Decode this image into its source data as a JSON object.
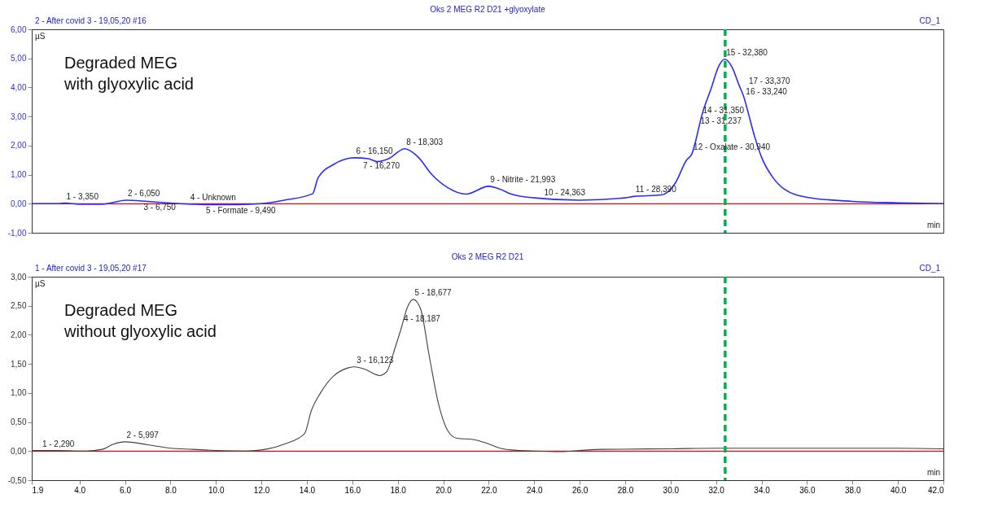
{
  "chart_data": [
    {
      "type": "line",
      "title": "Oks 2 MEG R2 D21 +glyoxylate",
      "annotations": [
        "2 - After covid 3 - 19,05,20 #16",
        "CD_1",
        "Degraded MEG\nwith glyoxylic acid",
        {
          "text": "1 - 3,350",
          "x": 3.35,
          "y": 0.02
        },
        {
          "text": "2 - 6,050",
          "x": 6.05,
          "y": 0.12
        },
        {
          "text": "3 - 6,750",
          "x": 6.75,
          "y": 0.1
        },
        {
          "text": "4 - Unknown",
          "x": 8.8,
          "y": -0.02
        },
        {
          "text": "5 - Formate - 9,490",
          "x": 9.49,
          "y": -0.03
        },
        {
          "text": "6 - 16,150",
          "x": 16.1,
          "y": 1.57
        },
        {
          "text": "7 - 16,270",
          "x": 16.4,
          "y": 1.52
        },
        {
          "text": "8 - 18,303",
          "x": 18.303,
          "y": 1.89
        },
        {
          "text": "9 - Nitrite - 21,993",
          "x": 21.993,
          "y": 0.6
        },
        {
          "text": "10 - 24,363",
          "x": 24.363,
          "y": 0.15
        },
        {
          "text": "11 - 28,390",
          "x": 28.39,
          "y": 0.25
        },
        {
          "text": "12 - Oxalate - 30,940",
          "x": 30.94,
          "y": 1.72
        },
        {
          "text": "13 - 31,237",
          "x": 31.237,
          "y": 2.6
        },
        {
          "text": "14 - 31,350",
          "x": 31.35,
          "y": 2.97
        },
        {
          "text": "15 - 32,380",
          "x": 32.38,
          "y": 4.97
        },
        {
          "text": "16 - 33,240",
          "x": 33.24,
          "y": 3.63
        },
        {
          "text": "17 - 33,370",
          "x": 33.37,
          "y": 3.26
        }
      ],
      "xlabel": "min",
      "ylabel": "µS",
      "x": [
        1.9,
        3.0,
        3.35,
        4.0,
        5.0,
        6.05,
        7.0,
        8.4,
        9.5,
        11.0,
        12.0,
        13.0,
        14.25,
        14.5,
        15.2,
        15.9,
        16.1,
        16.7,
        17.1,
        17.6,
        18.303,
        18.9,
        19.5,
        20.2,
        21.0,
        21.993,
        22.5,
        23.0,
        24.0,
        26.0,
        28.0,
        28.39,
        29.6,
        30.2,
        30.7,
        30.94,
        31.237,
        31.35,
        31.8,
        32.1,
        32.38,
        32.7,
        33.0,
        33.24,
        33.37,
        33.7,
        34.0,
        34.5,
        35.0,
        36.0,
        38.0,
        40.0,
        42.0
      ],
      "series": [
        {
          "color": "#2a2aff",
          "values": [
            0.0,
            0.0,
            0.02,
            -0.02,
            -0.02,
            0.12,
            0.08,
            0.0,
            -0.03,
            -0.03,
            0.0,
            0.12,
            0.34,
            0.9,
            1.36,
            1.57,
            1.58,
            1.55,
            1.45,
            1.55,
            1.89,
            1.6,
            1.0,
            0.55,
            0.33,
            0.6,
            0.5,
            0.33,
            0.2,
            0.12,
            0.2,
            0.25,
            0.3,
            0.7,
            1.5,
            1.72,
            2.6,
            2.97,
            4.0,
            4.7,
            4.97,
            4.7,
            4.1,
            3.63,
            3.26,
            2.3,
            1.6,
            0.9,
            0.5,
            0.22,
            0.08,
            0.03,
            0.0
          ]
        }
      ],
      "xlim": [
        1.9,
        42.0
      ],
      "ylim": [
        -1,
        6
      ],
      "yticks": [
        {
          "value": -1,
          "label": "-1,00"
        },
        {
          "value": 0,
          "label": "0,00"
        },
        {
          "value": 1,
          "label": "1,00"
        },
        {
          "value": 2,
          "label": "2,00"
        },
        {
          "value": 3,
          "label": "3,00"
        },
        {
          "value": 4,
          "label": "4,00"
        },
        {
          "value": 5,
          "label": "5,00"
        },
        {
          "value": 6,
          "label": "6,00"
        }
      ],
      "tick_labels": "y",
      "legend": false,
      "marker": "none",
      "line_style": "solid",
      "ref_lines": [
        {
          "axis": "y",
          "value": 0,
          "color": "#ff0000",
          "line_style": "solid"
        },
        {
          "axis": "x",
          "value": 32.4,
          "color": "#00b050",
          "line_style": "dashed"
        }
      ]
    },
    {
      "type": "line",
      "title": "Oks 2 MEG R2 D21",
      "annotations": [
        "1 - After covid 3 - 19,05,20 #17",
        "CD_1",
        "Degraded MEG\nwithout glyoxylic acid",
        {
          "text": "1 - 2,290",
          "x": 2.29,
          "y": 0.01
        },
        {
          "text": "2 - 5,997",
          "x": 5.997,
          "y": 0.16
        },
        {
          "text": "3 - 16,123",
          "x": 16.123,
          "y": 1.45
        },
        {
          "text": "4 - 18,187",
          "x": 18.187,
          "y": 2.16
        },
        {
          "text": "5 - 18,677",
          "x": 18.677,
          "y": 2.61
        }
      ],
      "xlabel": "min",
      "ylabel": "µS",
      "x": [
        1.9,
        2.29,
        3.0,
        4.3,
        5.0,
        5.5,
        5.997,
        7.0,
        8.0,
        9.0,
        10.0,
        11.3,
        12.0,
        13.0,
        13.9,
        14.2,
        14.6,
        15.2,
        15.8,
        16.123,
        16.6,
        17.2,
        17.5,
        17.9,
        18.187,
        18.4,
        18.677,
        19.0,
        19.4,
        19.8,
        20.2,
        20.6,
        21.3,
        21.8,
        22.5,
        23.0,
        24.0,
        25.2,
        26.0,
        27.0,
        30.0,
        32.0,
        36.0,
        40.0,
        42.0
      ],
      "series": [
        {
          "color": "#404040",
          "values": [
            0.01,
            0.01,
            0.01,
            0.0,
            0.03,
            0.12,
            0.16,
            0.11,
            0.05,
            0.03,
            0.01,
            0.0,
            0.02,
            0.12,
            0.3,
            0.7,
            1.0,
            1.3,
            1.43,
            1.45,
            1.4,
            1.3,
            1.36,
            1.8,
            2.16,
            2.45,
            2.61,
            2.45,
            1.6,
            0.8,
            0.35,
            0.22,
            0.2,
            0.15,
            0.05,
            0.02,
            0.0,
            -0.01,
            0.01,
            0.03,
            0.04,
            0.05,
            0.05,
            0.05,
            0.04
          ]
        }
      ],
      "xlim": [
        1.9,
        42.0
      ],
      "ylim": [
        -0.5,
        3.0
      ],
      "xticks": [
        1.9,
        {
          "value": 4,
          "label": "4.0"
        },
        {
          "value": 6,
          "label": "6.0"
        },
        {
          "value": 8,
          "label": "8.0"
        },
        {
          "value": 10,
          "label": "10.0"
        },
        {
          "value": 12,
          "label": "12.0"
        },
        {
          "value": 14,
          "label": "14.0"
        },
        {
          "value": 16,
          "label": "16.0"
        },
        {
          "value": 18,
          "label": "18.0"
        },
        {
          "value": 20,
          "label": "20.0"
        },
        {
          "value": 22,
          "label": "22.0"
        },
        {
          "value": 24,
          "label": "24.0"
        },
        {
          "value": 26,
          "label": "26.0"
        },
        {
          "value": 28,
          "label": "28.0"
        },
        {
          "value": 30,
          "label": "30.0"
        },
        {
          "value": 32,
          "label": "32.0"
        },
        {
          "value": 34,
          "label": "34.0"
        },
        {
          "value": 36,
          "label": "36.0"
        },
        {
          "value": 38,
          "label": "38.0"
        },
        {
          "value": 40,
          "label": "40.0"
        },
        {
          "value": 42,
          "label": "42.0"
        }
      ],
      "yticks": [
        {
          "value": -0.5,
          "label": "-0,50"
        },
        {
          "value": 0,
          "label": "0,00"
        },
        {
          "value": 0.5,
          "label": "0,50"
        },
        {
          "value": 1,
          "label": "1,00"
        },
        {
          "value": 1.5,
          "label": "1,50"
        },
        {
          "value": 2,
          "label": "2,00"
        },
        {
          "value": 2.5,
          "label": "2,50"
        },
        {
          "value": 3,
          "label": "3,00"
        }
      ],
      "legend": false,
      "marker": "none",
      "line_style": "solid",
      "ref_lines": [
        {
          "axis": "y",
          "value": 0,
          "color": "#ff0000",
          "line_style": "solid"
        },
        {
          "axis": "x",
          "value": 32.4,
          "color": "#00b050",
          "line_style": "dashed"
        }
      ]
    }
  ]
}
